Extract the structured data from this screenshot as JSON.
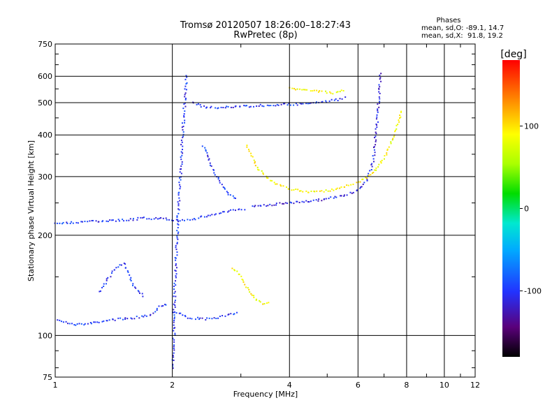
{
  "chart_data": {
    "type": "scatter",
    "title": "Tromsø 20120507 18:26:00–18:27:43",
    "subtitle": "RwPretec (8p)",
    "xlabel": "Frequency [MHz]",
    "ylabel": "Stationary phase Virtual Height [km]",
    "x_scale": "log",
    "y_scale": "log",
    "xlim": [
      1,
      12
    ],
    "ylim": [
      75,
      750
    ],
    "x_ticks": [
      1,
      2,
      4,
      6,
      8,
      10,
      12
    ],
    "y_ticks": [
      75,
      100,
      200,
      300,
      400,
      500,
      600,
      750
    ],
    "grid": true,
    "phase_info": {
      "heading": "Phases",
      "line1": "mean, sd,O: -89.1, 14.7",
      "line2": "mean, sd,X:  91.8, 19.2"
    },
    "colorbar": {
      "label": "[deg]",
      "ticks": [
        100,
        0,
        -100
      ],
      "range": [
        -180,
        180
      ]
    },
    "traces": [
      {
        "phase": -100,
        "points": [
          [
            1.02,
            112
          ],
          [
            1.05,
            110
          ],
          [
            1.1,
            108
          ],
          [
            1.2,
            108
          ],
          [
            1.3,
            110
          ],
          [
            1.45,
            112
          ],
          [
            1.6,
            113
          ],
          [
            1.75,
            115
          ],
          [
            1.85,
            122
          ],
          [
            1.95,
            125
          ]
        ]
      },
      {
        "phase": -100,
        "points": [
          [
            2.0,
            118
          ],
          [
            2.1,
            116
          ],
          [
            2.2,
            113
          ],
          [
            2.4,
            112
          ],
          [
            2.6,
            113
          ],
          [
            2.8,
            115
          ],
          [
            2.95,
            118
          ]
        ]
      },
      {
        "phase": -100,
        "points": [
          [
            1.0,
            217
          ],
          [
            1.05,
            218
          ],
          [
            1.3,
            220
          ],
          [
            1.5,
            222
          ],
          [
            1.7,
            225
          ],
          [
            1.9,
            224
          ],
          [
            2.1,
            222
          ],
          [
            2.3,
            224
          ],
          [
            2.5,
            230
          ],
          [
            2.8,
            236
          ],
          [
            3.1,
            240
          ]
        ]
      },
      {
        "phase": -100,
        "points": [
          [
            2.0,
            80
          ],
          [
            2.02,
            100
          ],
          [
            2.03,
            140
          ],
          [
            2.05,
            180
          ],
          [
            2.07,
            230
          ],
          [
            2.1,
            300
          ],
          [
            2.12,
            380
          ],
          [
            2.14,
            450
          ],
          [
            2.16,
            530
          ],
          [
            2.18,
            610
          ]
        ]
      },
      {
        "phase": -100,
        "points": [
          [
            2.25,
            500
          ],
          [
            2.4,
            485
          ],
          [
            2.6,
            483
          ],
          [
            3.0,
            487
          ],
          [
            3.5,
            491
          ],
          [
            4.0,
            494
          ],
          [
            4.5,
            497
          ],
          [
            5.0,
            504
          ],
          [
            5.4,
            512
          ],
          [
            5.6,
            520
          ]
        ]
      },
      {
        "phase": -110,
        "points": [
          [
            3.2,
            245
          ],
          [
            3.6,
            247
          ],
          [
            4.0,
            250
          ],
          [
            4.5,
            253
          ],
          [
            5.0,
            257
          ],
          [
            5.5,
            263
          ],
          [
            6.0,
            272
          ],
          [
            6.3,
            290
          ],
          [
            6.55,
            330
          ],
          [
            6.7,
            420
          ],
          [
            6.8,
            530
          ],
          [
            6.85,
            620
          ]
        ]
      },
      {
        "phase": 90,
        "points": [
          [
            3.1,
            370
          ],
          [
            3.3,
            320
          ],
          [
            3.6,
            290
          ],
          [
            4.0,
            275
          ],
          [
            4.5,
            270
          ],
          [
            5.0,
            272
          ],
          [
            5.5,
            278
          ],
          [
            6.0,
            288
          ],
          [
            6.5,
            305
          ],
          [
            7.0,
            340
          ],
          [
            7.3,
            380
          ],
          [
            7.6,
            430
          ],
          [
            7.8,
            480
          ]
        ]
      },
      {
        "phase": 90,
        "points": [
          [
            4.0,
            552
          ],
          [
            4.4,
            548
          ],
          [
            4.8,
            540
          ],
          [
            5.2,
            535
          ],
          [
            5.6,
            548
          ]
        ]
      },
      {
        "phase": 90,
        "points": [
          [
            2.85,
            160
          ],
          [
            3.0,
            150
          ],
          [
            3.15,
            135
          ],
          [
            3.3,
            127
          ],
          [
            3.45,
            124
          ],
          [
            3.6,
            125
          ]
        ]
      },
      {
        "phase": -100,
        "points": [
          [
            1.3,
            135
          ],
          [
            1.4,
            155
          ],
          [
            1.5,
            165
          ],
          [
            1.6,
            140
          ],
          [
            1.7,
            130
          ]
        ]
      },
      {
        "phase": -100,
        "points": [
          [
            2.4,
            370
          ],
          [
            2.5,
            330
          ],
          [
            2.6,
            300
          ],
          [
            2.7,
            280
          ],
          [
            2.8,
            265
          ],
          [
            2.95,
            255
          ]
        ]
      }
    ]
  }
}
